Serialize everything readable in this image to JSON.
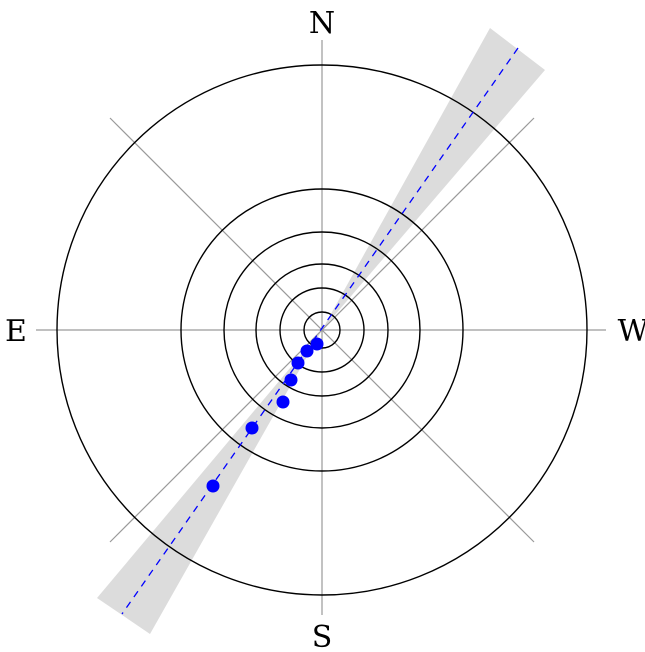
{
  "labels": {
    "north": "N",
    "south": "S",
    "east": "E",
    "west": "W"
  },
  "colors": {
    "background": "#ffffff",
    "ring": "#000000",
    "axis": "#9a9a9a",
    "cone": "#dcdcdc",
    "trend_line": "#0000ff",
    "points": "#0000ff"
  },
  "diagram": {
    "ring_count": 6,
    "cone_half_angle_deg": 4,
    "trend_azimuth_deg": 212,
    "points_count": 7
  }
}
